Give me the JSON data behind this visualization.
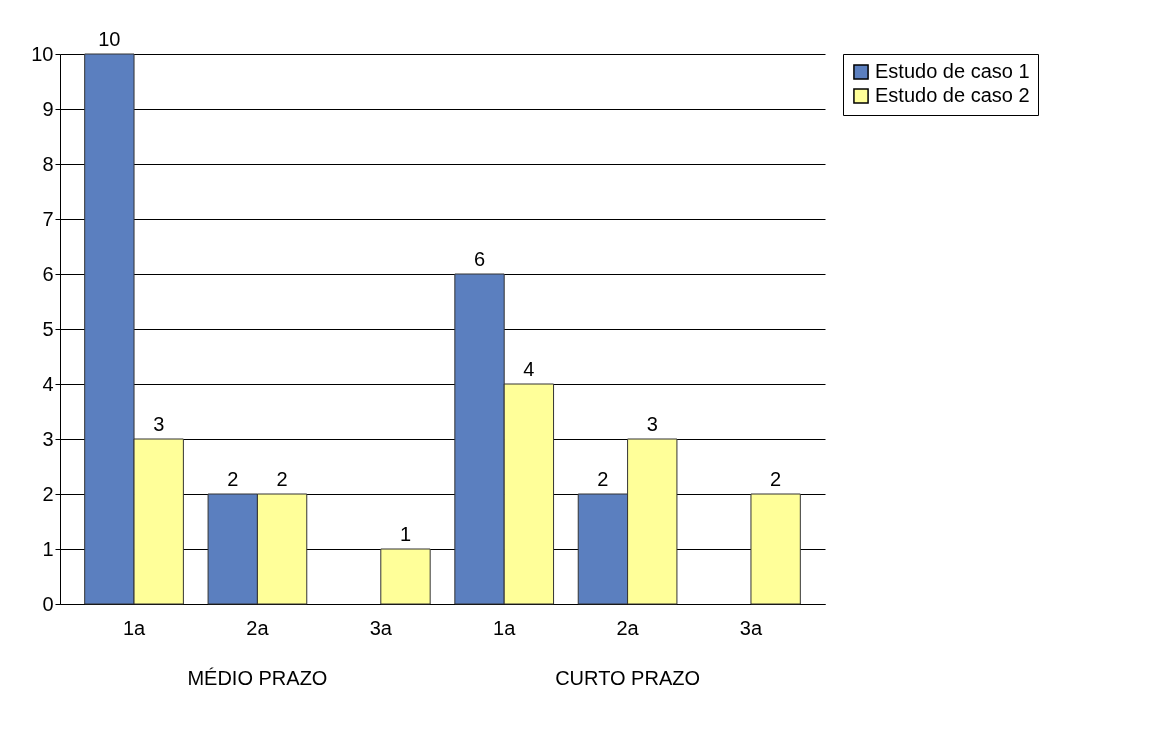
{
  "chart_data": {
    "type": "bar",
    "categories": [
      "1a",
      "2a",
      "3a",
      "1a",
      "2a",
      "3a"
    ],
    "series": [
      {
        "name": "Estudo de caso 1",
        "color": "#5b7fbf",
        "values": [
          10,
          2,
          null,
          6,
          2,
          null
        ]
      },
      {
        "name": "Estudo de caso 2",
        "color": "#ffff99",
        "values": [
          3,
          2,
          1,
          4,
          3,
          2
        ]
      }
    ],
    "ylim": [
      0,
      10
    ],
    "yticks": [
      0,
      1,
      2,
      3,
      4,
      5,
      6,
      7,
      8,
      9,
      10
    ],
    "grid": "y",
    "legend": "right",
    "data_labels": true,
    "annotations": [
      "MÉDIO PRAZO",
      "CURTO PRAZO"
    ]
  }
}
